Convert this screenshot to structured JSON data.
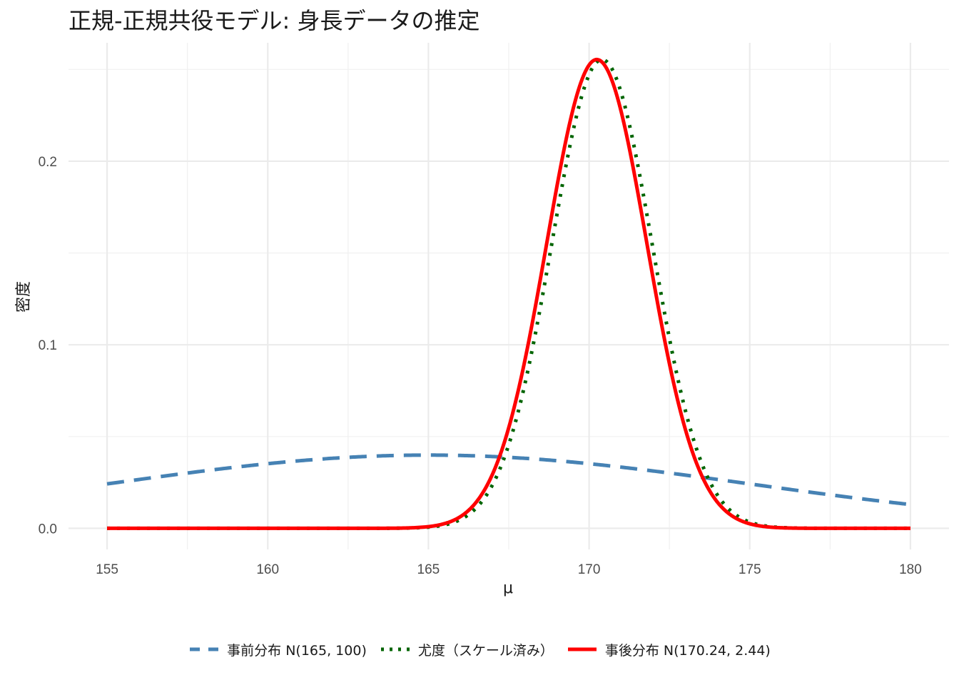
{
  "chart_data": {
    "type": "line",
    "title": "正規-正規共役モデル: 身長データの推定",
    "xlabel": "μ",
    "ylabel": "密度",
    "xlim": [
      155,
      180
    ],
    "ylim": [
      0,
      0.25
    ],
    "x_ticks": [
      "155",
      "160",
      "165",
      "170",
      "175",
      "180"
    ],
    "x_tick_values": [
      155,
      160,
      165,
      170,
      175,
      180
    ],
    "y_ticks": [
      "0.0",
      "0.1",
      "0.2"
    ],
    "y_tick_values": [
      0,
      0.1,
      0.2
    ],
    "grid": true,
    "legend_position": "bottom",
    "series": [
      {
        "name": "事前分布 N(165, 100)",
        "color": "#4682B4",
        "style": "dashed",
        "distribution": "normal",
        "mean": 165,
        "variance": 100,
        "scale": 1
      },
      {
        "name": "尤度（スケール済み）",
        "color": "#006400",
        "style": "dotted",
        "distribution": "normal",
        "mean": 170.4,
        "variance": 2.44,
        "scale": 1
      },
      {
        "name": "事後分布 N(170.24, 2.44)",
        "color": "#FF0000",
        "style": "solid",
        "distribution": "normal",
        "mean": 170.24,
        "variance": 2.44,
        "scale": 1
      }
    ]
  }
}
